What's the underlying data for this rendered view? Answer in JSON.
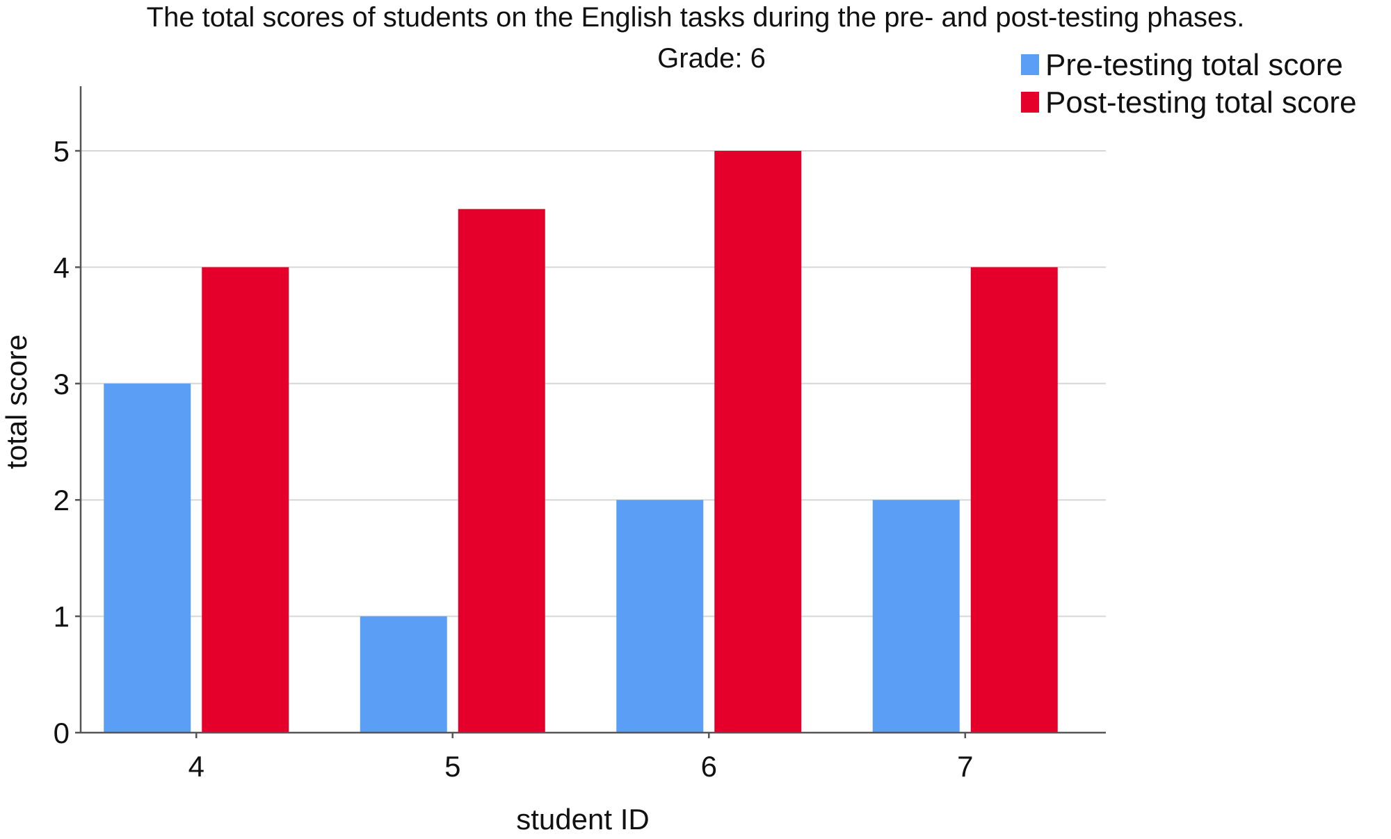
{
  "chart_data": {
    "type": "bar",
    "title": "The total scores of students on the English tasks during the pre- and post-testing phases.",
    "subtitle": "Grade: 6",
    "xlabel": "student ID",
    "ylabel": "total score",
    "categories": [
      "4",
      "5",
      "6",
      "7"
    ],
    "series": [
      {
        "name": "Pre-testing total score",
        "color": "#5a9ff5",
        "values": [
          3,
          1,
          2,
          2
        ]
      },
      {
        "name": "Post-testing total score",
        "color": "#e4002b",
        "values": [
          4,
          4.5,
          5,
          4
        ]
      }
    ],
    "ylim": [
      0,
      5.5
    ],
    "yticks": [
      "0",
      "1",
      "2",
      "3",
      "4",
      "5"
    ],
    "grid": true,
    "legend_position": "top-right"
  }
}
